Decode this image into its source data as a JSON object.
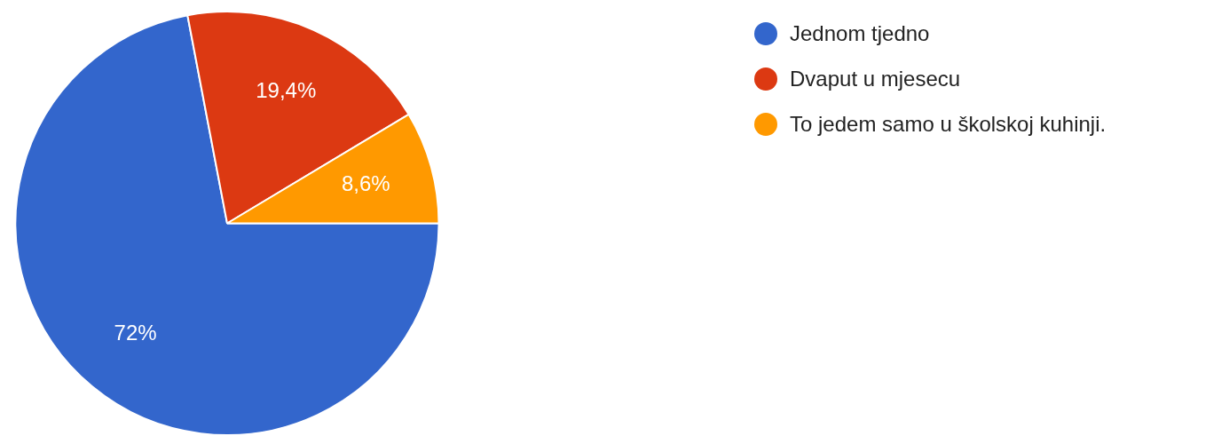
{
  "chart_data": {
    "type": "pie",
    "categories": [
      "Jednom tjedno",
      "Dvaput u mjesecu",
      "To jedem samo u školskoj kuhinji."
    ],
    "values": [
      72,
      19.4,
      8.6
    ],
    "colors": [
      "#3366cc",
      "#dc3912",
      "#ff9900"
    ],
    "value_labels": [
      "72%",
      "19,4%",
      "8,6%"
    ],
    "legend": "top right"
  }
}
